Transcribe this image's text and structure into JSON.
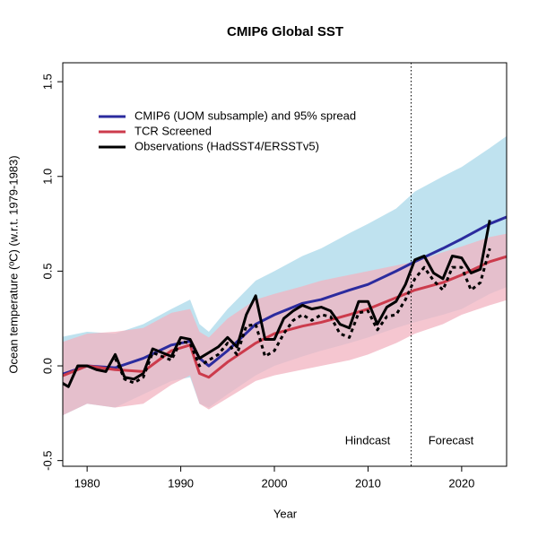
{
  "chart_data": {
    "type": "line",
    "title": "CMIP6 Global SST",
    "xlabel": "Year",
    "ylabel": "Ocean temperature (ºC) (w.r.t. 1979-1983)",
    "xlim": [
      1977.4,
      2024.8
    ],
    "ylim": [
      -0.53,
      1.6
    ],
    "xticks": [
      1980,
      1990,
      2000,
      2010,
      2020
    ],
    "yticks": [
      -0.5,
      {
        "value": 0,
        "label": "0.0"
      },
      0.5,
      {
        "value": 1,
        "label": "1.0"
      },
      1.5
    ],
    "divider_x": 2014.6,
    "annotations": [
      "Hindcast",
      "Forecast"
    ],
    "series": [
      {
        "name": "CMIP6 (UOM subsample) and 95% spread",
        "color": "#2b2b9e",
        "band_color": "#a9d8ea",
        "x": [
          1977,
          1980,
          1983,
          1986,
          1989,
          1991,
          1992,
          1993,
          1995,
          1998,
          2000,
          2003,
          2005,
          2008,
          2010,
          2013,
          2015,
          2018,
          2020,
          2023,
          2025
        ],
        "values": [
          -0.05,
          0.0,
          -0.01,
          0.04,
          0.11,
          0.13,
          0.04,
          0.0,
          0.08,
          0.22,
          0.27,
          0.33,
          0.35,
          0.4,
          0.43,
          0.5,
          0.55,
          0.62,
          0.67,
          0.75,
          0.79
        ],
        "upper": [
          0.15,
          0.18,
          0.17,
          0.22,
          0.3,
          0.35,
          0.22,
          0.18,
          0.3,
          0.45,
          0.5,
          0.58,
          0.62,
          0.7,
          0.75,
          0.83,
          0.92,
          1.0,
          1.05,
          1.15,
          1.22
        ],
        "lower": [
          -0.27,
          -0.2,
          -0.22,
          -0.15,
          -0.08,
          -0.06,
          -0.2,
          -0.22,
          -0.15,
          -0.05,
          0.0,
          0.05,
          0.08,
          0.12,
          0.15,
          0.2,
          0.23,
          0.27,
          0.3,
          0.38,
          0.42
        ]
      },
      {
        "name": "TCR Screened",
        "color": "#cc3b4c",
        "band_color": "#f2b3c0",
        "x": [
          1977,
          1980,
          1983,
          1986,
          1989,
          1991,
          1992,
          1993,
          1995,
          1998,
          2000,
          2003,
          2005,
          2008,
          2010,
          2013,
          2015,
          2018,
          2020,
          2023,
          2025
        ],
        "values": [
          -0.06,
          0.0,
          -0.02,
          -0.03,
          0.08,
          0.11,
          -0.04,
          -0.06,
          0.02,
          0.12,
          0.17,
          0.21,
          0.23,
          0.27,
          0.3,
          0.36,
          0.4,
          0.44,
          0.48,
          0.55,
          0.58
        ],
        "upper": [
          0.12,
          0.17,
          0.18,
          0.2,
          0.28,
          0.3,
          0.18,
          0.15,
          0.25,
          0.35,
          0.38,
          0.42,
          0.45,
          0.48,
          0.5,
          0.53,
          0.55,
          0.6,
          0.63,
          0.68,
          0.7
        ],
        "lower": [
          -0.27,
          -0.2,
          -0.22,
          -0.2,
          -0.1,
          -0.05,
          -0.2,
          -0.23,
          -0.17,
          -0.08,
          -0.05,
          -0.02,
          0.0,
          0.03,
          0.06,
          0.12,
          0.17,
          0.22,
          0.27,
          0.32,
          0.35
        ]
      },
      {
        "name": "Observations (HadSST4/ERSSTv5)",
        "color": "#000000",
        "x": [
          1977,
          1978,
          1979,
          1980,
          1981,
          1982,
          1983,
          1984,
          1985,
          1986,
          1987,
          1988,
          1989,
          1990,
          1991,
          1992,
          1993,
          1994,
          1995,
          1996,
          1997,
          1998,
          1999,
          2000,
          2001,
          2002,
          2003,
          2004,
          2005,
          2006,
          2007,
          2008,
          2009,
          2010,
          2011,
          2012,
          2013,
          2014,
          2015,
          2016,
          2017,
          2018,
          2019,
          2020,
          2021,
          2022,
          2023
        ],
        "values": [
          -0.08,
          -0.11,
          0.0,
          0.0,
          -0.02,
          -0.03,
          0.06,
          -0.06,
          -0.07,
          -0.04,
          0.09,
          0.07,
          0.05,
          0.15,
          0.14,
          0.04,
          0.07,
          0.1,
          0.15,
          0.1,
          0.27,
          0.37,
          0.14,
          0.14,
          0.25,
          0.29,
          0.32,
          0.3,
          0.31,
          0.29,
          0.22,
          0.2,
          0.34,
          0.34,
          0.22,
          0.31,
          0.34,
          0.43,
          0.56,
          0.58,
          0.49,
          0.46,
          0.58,
          0.57,
          0.49,
          0.51,
          0.77
        ]
      },
      {
        "color": "#000000",
        "dashed": true,
        "x": [
          1977,
          1978,
          1979,
          1980,
          1981,
          1982,
          1983,
          1984,
          1985,
          1986,
          1987,
          1988,
          1989,
          1990,
          1991,
          1992,
          1993,
          1994,
          1995,
          1996,
          1997,
          1998,
          1999,
          2000,
          2001,
          2002,
          2003,
          2004,
          2005,
          2006,
          2007,
          2008,
          2009,
          2010,
          2011,
          2012,
          2013,
          2014,
          2015,
          2016,
          2017,
          2018,
          2019,
          2020,
          2021,
          2022,
          2023
        ],
        "values": [
          null,
          null,
          null,
          null,
          null,
          null,
          0.04,
          -0.07,
          -0.09,
          -0.06,
          0.07,
          0.05,
          0.03,
          0.13,
          0.12,
          0.0,
          0.03,
          0.06,
          0.12,
          0.06,
          0.21,
          0.22,
          0.05,
          0.08,
          0.17,
          0.24,
          0.27,
          0.24,
          0.27,
          0.26,
          0.17,
          0.15,
          0.28,
          0.29,
          0.19,
          0.26,
          0.27,
          0.35,
          0.46,
          0.52,
          0.45,
          0.4,
          0.52,
          0.52,
          0.4,
          0.44,
          0.62
        ]
      }
    ]
  }
}
